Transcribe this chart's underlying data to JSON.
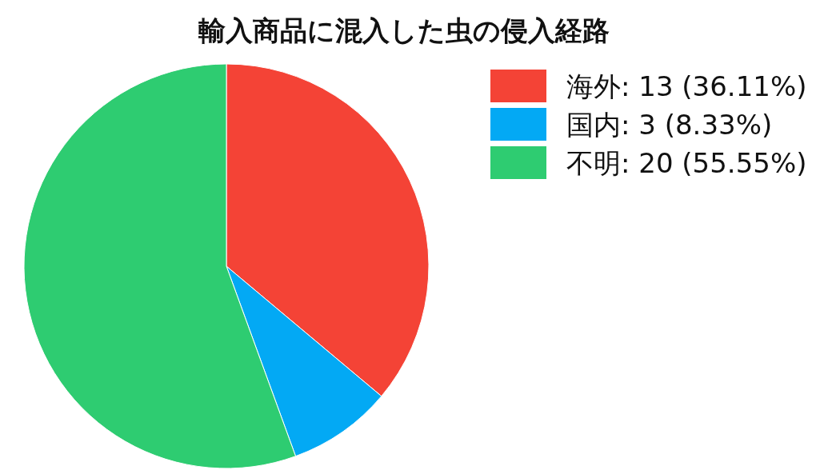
{
  "chart_data": {
    "type": "pie",
    "title": "輸入商品に混入した虫の侵入経路",
    "categories": [
      "海外",
      "国内",
      "不明"
    ],
    "values": [
      13,
      3,
      20
    ],
    "value_labels": [
      "13 (36.11%)",
      "3 (8.33%)",
      "20 (55.55%)"
    ],
    "colors": [
      "#f44336",
      "#03a9f4",
      "#2ecc71"
    ],
    "legend": "top right"
  }
}
